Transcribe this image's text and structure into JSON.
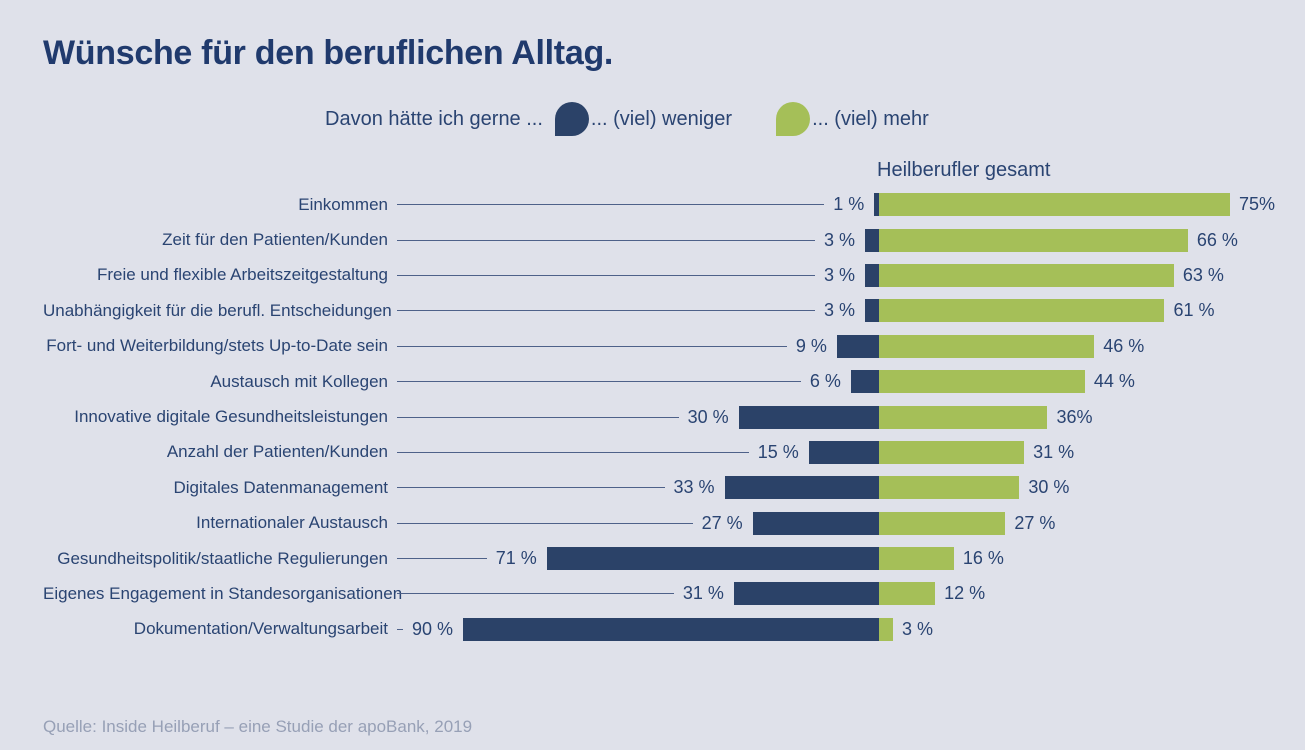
{
  "title": "Wünsche für den beruflichen Alltag.",
  "legend": {
    "prompt": "Davon hätte ich gerne ...",
    "weniger_label": "... (viel) weniger",
    "mehr_label": "... (viel) mehr"
  },
  "column_header": "Heilberufler gesamt",
  "source": "Quelle: Inside Heilberuf – eine Studie der apoBank, 2019",
  "colors": {
    "background": "#dfe1ea",
    "text": "#2a4472",
    "weniger": "#2b4268",
    "mehr": "#a5bf58",
    "leader_line": "#4e6189",
    "source_text": "#97a0b6"
  },
  "chart_data": {
    "type": "bar",
    "orientation": "horizontal_diverging",
    "title": "Wünsche für den beruflichen Alltag.",
    "column_header": "Heilberufler gesamt",
    "legend_prompt": "Davon hätte ich gerne ...",
    "unit": "%",
    "axis_baseline": "center divider between weniger (left, navy) and mehr (right, green)",
    "categories": [
      "Einkommen",
      "Zeit für den Patienten/Kunden",
      "Freie und flexible Arbeitszeitgestaltung",
      "Unabhängigkeit für die berufl. Entscheidungen",
      "Fort- und Weiterbildung/stets Up-to-Date sein",
      "Austausch mit Kollegen",
      "Innovative digitale Gesundheitsleistungen",
      "Anzahl der Patienten/Kunden",
      "Digitales Datenmanagement",
      "Internationaler Austausch",
      "Gesundheitspolitik/staatliche Regulierungen",
      "Eigenes Engagement in Standesorganisationen",
      "Dokumentation/Verwaltungsarbeit"
    ],
    "series": [
      {
        "name": "... (viel) weniger",
        "color": "#2b4268",
        "values": [
          1,
          3,
          3,
          3,
          9,
          6,
          30,
          15,
          33,
          27,
          71,
          31,
          90
        ],
        "labels": [
          "1 %",
          "3 %",
          "3 %",
          "3 %",
          "9 %",
          "6 %",
          "30 %",
          "15 %",
          "33 %",
          "27 %",
          "71 %",
          "31 %",
          "90 %"
        ]
      },
      {
        "name": "... (viel) mehr",
        "color": "#a5bf58",
        "values": [
          75,
          66,
          63,
          61,
          46,
          44,
          36,
          31,
          30,
          27,
          16,
          12,
          3
        ],
        "labels": [
          "75%",
          "66 %",
          "63 %",
          "61 %",
          "46 %",
          "44 %",
          "36%",
          "31 %",
          "30 %",
          "27 %",
          "16 %",
          "12 %",
          "3 %"
        ]
      }
    ],
    "xlim_weniger": [
      0,
      90
    ],
    "xlim_mehr": [
      0,
      75
    ]
  }
}
